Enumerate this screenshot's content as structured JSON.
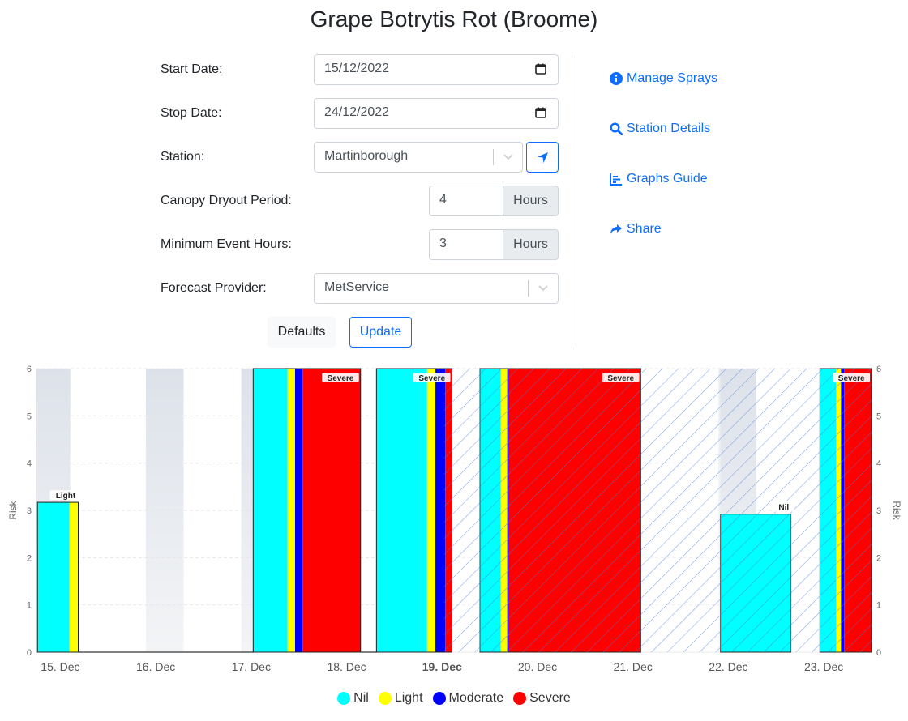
{
  "page": {
    "title": "Grape Botrytis Rot (Broome)"
  },
  "form": {
    "start_date": {
      "label": "Start Date:",
      "value": "15/12/2022"
    },
    "stop_date": {
      "label": "Stop Date:",
      "value": "24/12/2022"
    },
    "station": {
      "label": "Station:",
      "value": "Martinborough"
    },
    "canopy": {
      "label": "Canopy Dryout Period:",
      "value": "4",
      "unit": "Hours"
    },
    "min_event": {
      "label": "Minimum Event Hours:",
      "value": "3",
      "unit": "Hours"
    },
    "forecast": {
      "label": "Forecast Provider:",
      "value": "MetService"
    },
    "defaults_label": "Defaults",
    "update_label": "Update"
  },
  "links": {
    "manage_sprays": "Manage Sprays",
    "station_details": "Station Details",
    "graphs_guide": "Graphs Guide",
    "share": "Share"
  },
  "colors": {
    "Nil": "#00ffff",
    "Light": "#ffff00",
    "Moderate": "#0000ff",
    "Severe": "#ff0000",
    "link": "#0d6efd"
  },
  "chart_data": {
    "type": "bar",
    "ylabel": "Risk",
    "ylabel_right": "Risk",
    "ylim": [
      0,
      6
    ],
    "yticks": [
      0,
      1,
      2,
      3,
      4,
      5,
      6
    ],
    "xlim": [
      "2022-12-14T18:00",
      "2022-12-23T12:00"
    ],
    "xticks": [
      {
        "label": "15. Dec",
        "date": "2022-12-15",
        "bold": false
      },
      {
        "label": "16. Dec",
        "date": "2022-12-16",
        "bold": false
      },
      {
        "label": "17. Dec",
        "date": "2022-12-17",
        "bold": false
      },
      {
        "label": "18. Dec",
        "date": "2022-12-18",
        "bold": false
      },
      {
        "label": "19. Dec",
        "date": "2022-12-19",
        "bold": true
      },
      {
        "label": "20. Dec",
        "date": "2022-12-20",
        "bold": false
      },
      {
        "label": "21. Dec",
        "date": "2022-12-21",
        "bold": false
      },
      {
        "label": "22. Dec",
        "date": "2022-12-22",
        "bold": false
      },
      {
        "label": "23. Dec",
        "date": "2022-12-23",
        "bold": false
      }
    ],
    "night_bands": [
      {
        "from": "2022-12-14T18:00",
        "to": "2022-12-15T02:30"
      },
      {
        "from": "2022-12-15T21:30",
        "to": "2022-12-16T07:00"
      },
      {
        "from": "2022-12-16T21:30",
        "to": "2022-12-17T07:00"
      },
      {
        "from": "2022-12-21T21:30",
        "to": "2022-12-22T07:00"
      }
    ],
    "forecast_from": "2022-12-19T00:30",
    "events": [
      {
        "from": "2022-12-14T18:15",
        "to": "2022-12-15T04:30",
        "risk": 3.17,
        "level": "Light",
        "stack": [
          [
            "Nil",
            0.78
          ],
          [
            "Light",
            0.22
          ]
        ]
      },
      {
        "from": "2022-12-15T04:30",
        "to": "2022-12-17T00:30",
        "risk": 0,
        "level": "",
        "stack": []
      },
      {
        "from": "2022-12-17T00:30",
        "to": "2022-12-18T03:30",
        "risk": 6,
        "level": "Severe",
        "stack": [
          [
            "Nil",
            0.32
          ],
          [
            "Light",
            0.07
          ],
          [
            "Moderate",
            0.07
          ],
          [
            "Severe",
            0.54
          ]
        ]
      },
      {
        "from": "2022-12-18T03:30",
        "to": "2022-12-18T07:30",
        "risk": 0,
        "level": "",
        "stack": []
      },
      {
        "from": "2022-12-18T07:30",
        "to": "2022-12-19T02:30",
        "risk": 6,
        "level": "Severe",
        "stack": [
          [
            "Nil",
            0.67
          ],
          [
            "Light",
            0.11
          ],
          [
            "Moderate",
            0.13
          ],
          [
            "Severe",
            0.09
          ]
        ]
      },
      {
        "from": "2022-12-19T02:30",
        "to": "2022-12-19T09:30",
        "risk": 6,
        "level": "",
        "stack": []
      },
      {
        "from": "2022-12-19T09:30",
        "to": "2022-12-21T02:00",
        "risk": 6,
        "level": "Severe",
        "stack": [
          [
            "Nil",
            0.13
          ],
          [
            "Light",
            0.04
          ],
          [
            "Moderate",
            0.01
          ],
          [
            "Severe",
            0.82
          ]
        ]
      },
      {
        "from": "2022-12-21T02:00",
        "to": "2022-12-21T22:00",
        "risk": 6,
        "level": "",
        "stack": []
      },
      {
        "from": "2022-12-21T22:00",
        "to": "2022-12-22T15:45",
        "risk": 2.92,
        "level": "Nil",
        "stack": [
          [
            "Nil",
            1.0
          ]
        ]
      },
      {
        "from": "2022-12-22T15:45",
        "to": "2022-12-22T23:00",
        "risk": 6,
        "level": "",
        "stack": []
      },
      {
        "from": "2022-12-22T23:00",
        "to": "2022-12-23T12:00",
        "risk": 6,
        "level": "Severe",
        "stack": [
          [
            "Nil",
            0.31
          ],
          [
            "Light",
            0.1
          ],
          [
            "Moderate",
            0.06
          ],
          [
            "Severe",
            0.53
          ]
        ]
      }
    ],
    "legend": [
      "Nil",
      "Light",
      "Moderate",
      "Severe"
    ],
    "legend_position": "bottom-center",
    "grid": true
  }
}
